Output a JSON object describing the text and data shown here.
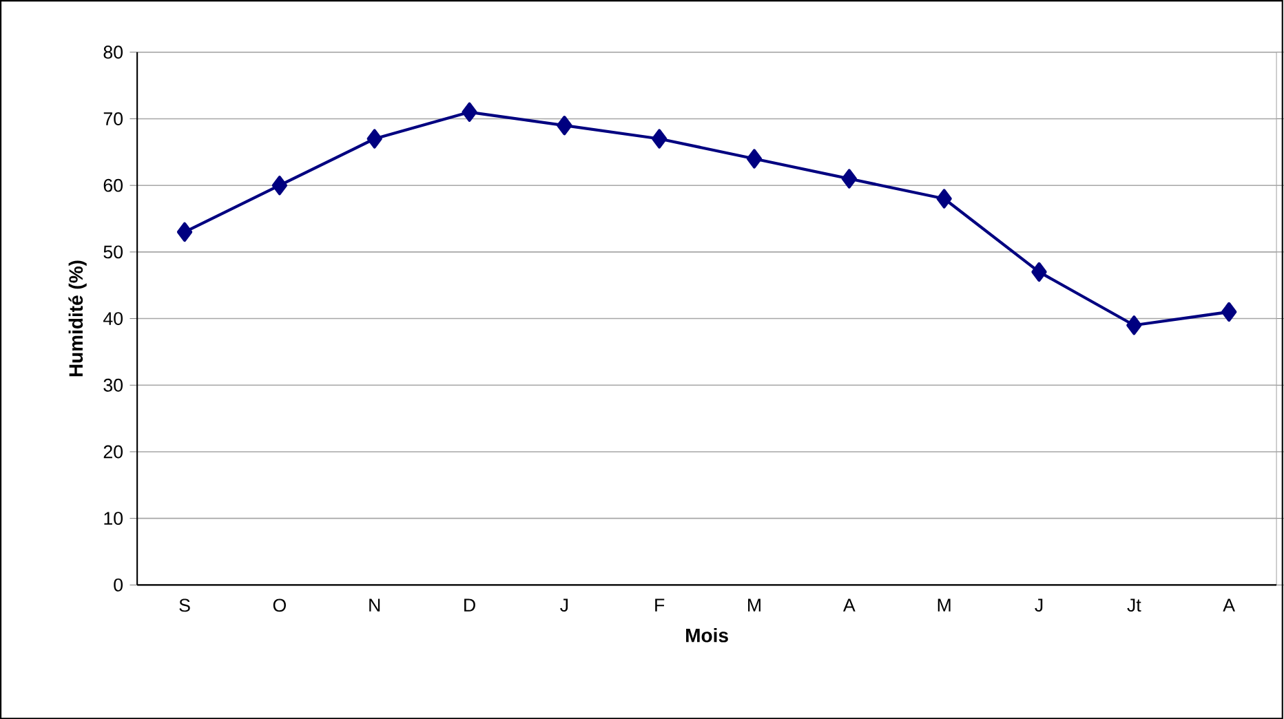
{
  "chart_data": {
    "type": "line",
    "xlabel": "Mois",
    "ylabel": "Humidité (%)",
    "categories": [
      "S",
      "O",
      "N",
      "D",
      "J",
      "F",
      "M",
      "A",
      "M",
      "J",
      "Jt",
      "A"
    ],
    "values": [
      53,
      60,
      67,
      71,
      69,
      67,
      64,
      61,
      58,
      47,
      39,
      41
    ],
    "color": "#000080",
    "marker": "diamond",
    "line_style": "solid",
    "ylim": [
      0,
      80
    ],
    "yticks": [
      0,
      10,
      20,
      30,
      40,
      50,
      60,
      70,
      80
    ],
    "grid": "y"
  }
}
